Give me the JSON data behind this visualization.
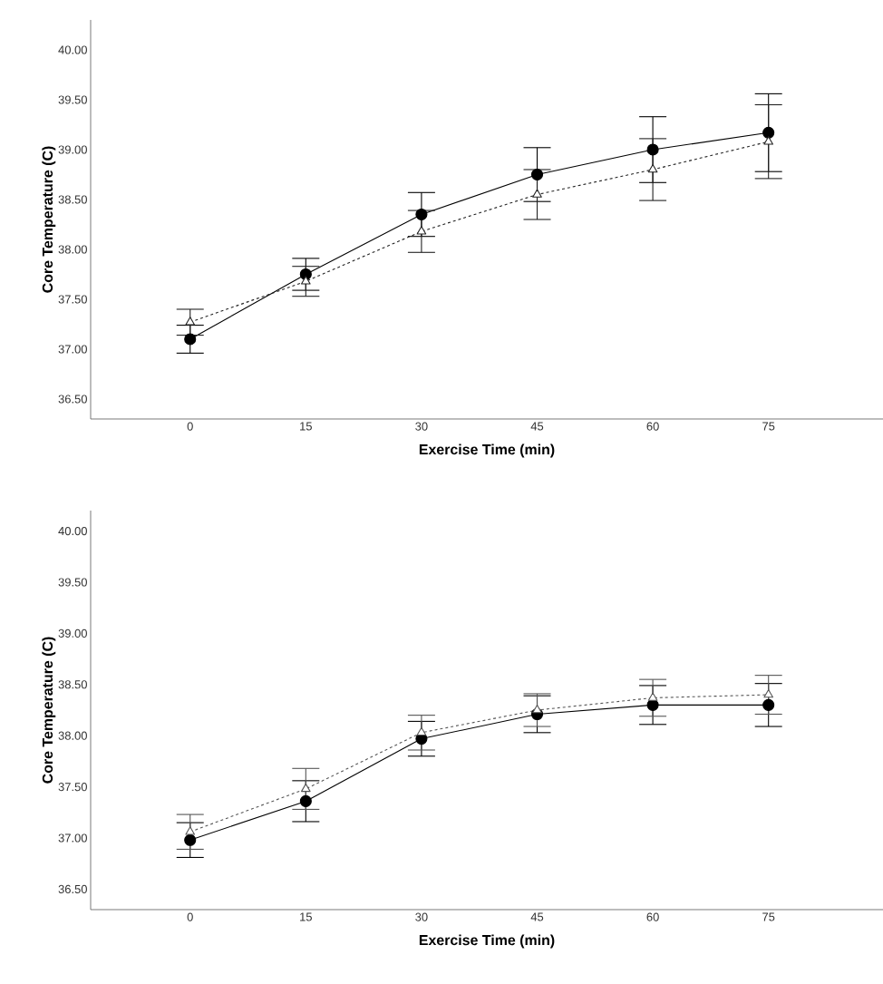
{
  "chart_data": [
    {
      "type": "line",
      "xlabel": "Exercise Time (min)",
      "ylabel": "Core Temperature (C)",
      "categories": [
        "0",
        "15",
        "30",
        "45",
        "60",
        "75"
      ],
      "ylim": [
        36.3,
        40.3
      ],
      "yticks": [
        {
          "value": 36.5,
          "label": "36.50"
        },
        {
          "value": 37,
          "label": "37.00"
        },
        {
          "value": 37.5,
          "label": "37.50"
        },
        {
          "value": 38,
          "label": "38.00"
        },
        {
          "value": 38.5,
          "label": "38.50"
        },
        {
          "value": 39,
          "label": "39.00"
        },
        {
          "value": 39.5,
          "label": "39.50"
        },
        {
          "value": 40,
          "label": "40.00"
        }
      ],
      "series": [
        {
          "color": "#000000",
          "marker": "circle",
          "line_style": "solid",
          "values": [
            37.1,
            37.75,
            38.35,
            38.75,
            39.0,
            39.17
          ],
          "errors": [
            0.14,
            0.16,
            0.22,
            0.27,
            0.33,
            0.39
          ]
        },
        {
          "color": "#222222",
          "marker": "triangle",
          "line_style": "dashed",
          "values": [
            37.27,
            37.68,
            38.18,
            38.55,
            38.8,
            39.08
          ],
          "errors": [
            0.13,
            0.15,
            0.21,
            0.25,
            0.31,
            0.37
          ]
        }
      ]
    },
    {
      "type": "line",
      "xlabel": "Exercise Time (min)",
      "ylabel": "Core Temperature (C)",
      "categories": [
        "0",
        "15",
        "30",
        "45",
        "60",
        "75"
      ],
      "ylim": [
        36.3,
        40.2
      ],
      "yticks": [
        {
          "value": 36.5,
          "label": "36.50"
        },
        {
          "value": 37,
          "label": "37.00"
        },
        {
          "value": 37.5,
          "label": "37.50"
        },
        {
          "value": 38,
          "label": "38.00"
        },
        {
          "value": 38.5,
          "label": "38.50"
        },
        {
          "value": 39,
          "label": "39.00"
        },
        {
          "value": 39.5,
          "label": "39.50"
        },
        {
          "value": 40,
          "label": "40.00"
        }
      ],
      "series": [
        {
          "color": "#000000",
          "marker": "circle",
          "line_style": "solid",
          "values": [
            36.98,
            37.36,
            37.97,
            38.21,
            38.3,
            38.3
          ],
          "errors": [
            0.17,
            0.2,
            0.17,
            0.18,
            0.19,
            0.21
          ]
        },
        {
          "color": "#555555",
          "marker": "triangle",
          "line_style": "dashed",
          "values": [
            37.06,
            37.48,
            38.03,
            38.25,
            38.37,
            38.4
          ],
          "errors": [
            0.17,
            0.2,
            0.17,
            0.16,
            0.18,
            0.19
          ]
        }
      ]
    }
  ]
}
